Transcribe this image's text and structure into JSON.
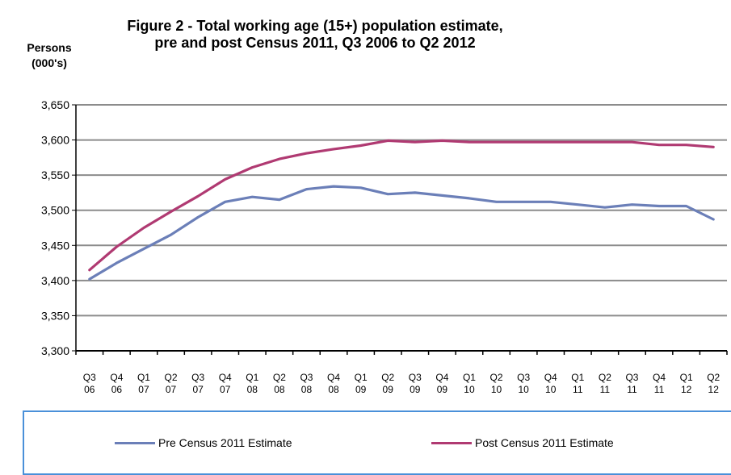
{
  "chart_data": {
    "type": "line",
    "title_line1": "Figure 2 - Total working age (15+) population estimate,",
    "title_line2": "pre and post Census 2011, Q3 2006 to Q2 2012",
    "ylabel_line1": "Persons",
    "ylabel_line2": "(000's)",
    "ylim": [
      3300,
      3650
    ],
    "yticks": [
      "3,300",
      "3,350",
      "3,400",
      "3,450",
      "3,500",
      "3,550",
      "3,600",
      "3,650"
    ],
    "ytick_values": [
      3300,
      3350,
      3400,
      3450,
      3500,
      3550,
      3600,
      3650
    ],
    "grid": true,
    "legend_position": "bottom",
    "categories": [
      [
        "Q3",
        "06"
      ],
      [
        "Q4",
        "06"
      ],
      [
        "Q1",
        "07"
      ],
      [
        "Q2",
        "07"
      ],
      [
        "Q3",
        "07"
      ],
      [
        "Q4",
        "07"
      ],
      [
        "Q1",
        "08"
      ],
      [
        "Q2",
        "08"
      ],
      [
        "Q3",
        "08"
      ],
      [
        "Q4",
        "08"
      ],
      [
        "Q1",
        "09"
      ],
      [
        "Q2",
        "09"
      ],
      [
        "Q3",
        "09"
      ],
      [
        "Q4",
        "09"
      ],
      [
        "Q1",
        "10"
      ],
      [
        "Q2",
        "10"
      ],
      [
        "Q3",
        "10"
      ],
      [
        "Q4",
        "10"
      ],
      [
        "Q1",
        "11"
      ],
      [
        "Q2",
        "11"
      ],
      [
        "Q3",
        "11"
      ],
      [
        "Q4",
        "11"
      ],
      [
        "Q1",
        "12"
      ],
      [
        "Q2",
        "12"
      ]
    ],
    "series": [
      {
        "name": "Pre Census 2011 Estimate",
        "color": "#6b7fb8",
        "values": [
          3402,
          3425,
          3445,
          3465,
          3490,
          3512,
          3519,
          3515,
          3530,
          3534,
          3532,
          3523,
          3525,
          3521,
          3517,
          3512,
          3512,
          3512,
          3508,
          3504,
          3508,
          3506,
          3506,
          3487
        ]
      },
      {
        "name": "Post Census 2011 Estimate",
        "color": "#b03a72",
        "values": [
          3415,
          3448,
          3475,
          3498,
          3520,
          3544,
          3561,
          3573,
          3581,
          3587,
          3592,
          3599,
          3597,
          3599,
          3597,
          3597,
          3597,
          3597,
          3597,
          3597,
          3597,
          3593,
          3593,
          3590
        ]
      }
    ]
  }
}
